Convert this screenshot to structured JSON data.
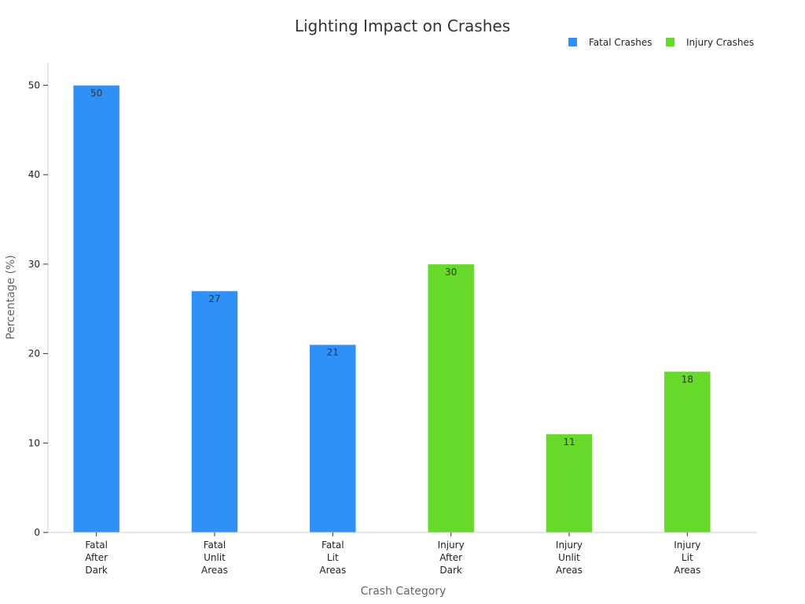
{
  "chart_data": {
    "type": "bar",
    "title": "Lighting Impact on Crashes",
    "xlabel": "Crash Category",
    "ylabel": "Percentage (%)",
    "ylim": [
      0,
      52.5
    ],
    "yticks": [
      0,
      10,
      20,
      30,
      40,
      50
    ],
    "grid": false,
    "legend_position": "top-right",
    "categories": [
      [
        "Fatal",
        "After",
        "Dark"
      ],
      [
        "Fatal",
        "Unlit",
        "Areas"
      ],
      [
        "Fatal",
        "Lit",
        "Areas"
      ],
      [
        "Injury",
        "After",
        "Dark"
      ],
      [
        "Injury",
        "Unlit",
        "Areas"
      ],
      [
        "Injury",
        "Lit",
        "Areas"
      ]
    ],
    "series": [
      {
        "name": "Fatal Crashes",
        "color": "#2f91f7",
        "values": [
          50,
          27,
          21,
          null,
          null,
          null
        ]
      },
      {
        "name": "Injury Crashes",
        "color": "#66d92a",
        "values": [
          null,
          null,
          null,
          30,
          11,
          18
        ]
      }
    ]
  }
}
